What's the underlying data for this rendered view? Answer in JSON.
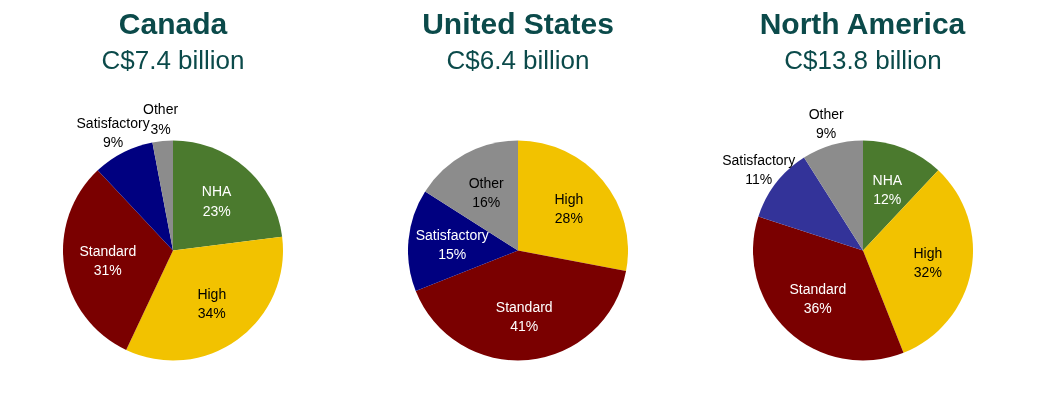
{
  "chart_data": [
    {
      "type": "pie",
      "title": "Canada",
      "subtitle": "C$7.4 billion",
      "categories": [
        "NHA",
        "High",
        "Standard",
        "Satisfactory",
        "Other"
      ],
      "values": [
        23,
        34,
        31,
        9,
        3
      ],
      "colors": [
        "#4b7a2e",
        "#f2c200",
        "#7a0000",
        "#000080",
        "#8c8c8c"
      ],
      "value_labels": [
        "23%",
        "34%",
        "31%",
        "9%",
        "3%"
      ],
      "legend": false
    },
    {
      "type": "pie",
      "title": "United States",
      "subtitle": "C$6.4 billion",
      "categories": [
        "High",
        "Standard",
        "Satisfactory",
        "Other"
      ],
      "values": [
        28,
        41,
        15,
        16
      ],
      "colors": [
        "#f2c200",
        "#7a0000",
        "#000080",
        "#8c8c8c"
      ],
      "value_labels": [
        "28%",
        "41%",
        "15%",
        "16%"
      ],
      "legend": false
    },
    {
      "type": "pie",
      "title": "North America",
      "subtitle": "C$13.8 billion",
      "categories": [
        "NHA",
        "High",
        "Standard",
        "Satisfactory",
        "Other"
      ],
      "values": [
        12,
        32,
        36,
        11,
        9
      ],
      "colors": [
        "#4b7a2e",
        "#f2c200",
        "#7a0000",
        "#333399",
        "#8c8c8c"
      ],
      "value_labels": [
        "12%",
        "32%",
        "36%",
        "11%",
        "9%"
      ],
      "legend": false
    }
  ]
}
